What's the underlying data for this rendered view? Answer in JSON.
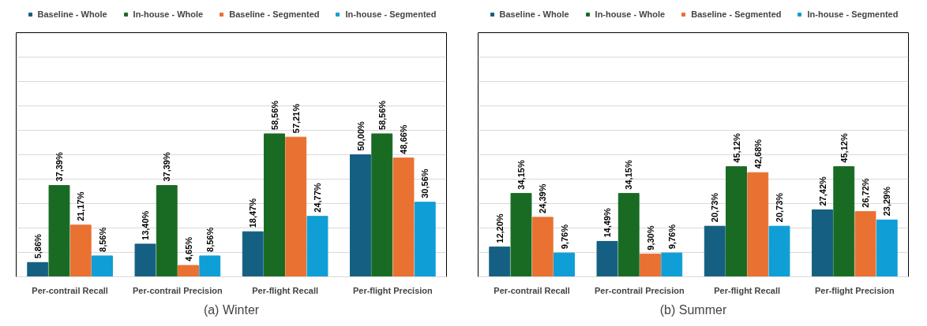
{
  "chart_data": [
    {
      "type": "bar",
      "title": "(a) Winter",
      "categories": [
        "Per-contrail Recall",
        "Per-contrail Precision",
        "Per-flight Recall",
        "Per-flight Precision"
      ],
      "ylim": [
        0,
        100
      ],
      "yticks": [
        {
          "value": 0,
          "label": null
        },
        {
          "value": 10,
          "label": null
        },
        {
          "value": 20,
          "label": null
        },
        {
          "value": 30,
          "label": null
        },
        {
          "value": 40,
          "label": null
        },
        {
          "value": 50,
          "label": null
        },
        {
          "value": 60,
          "label": null
        },
        {
          "value": 70,
          "label": null
        },
        {
          "value": 80,
          "label": null
        },
        {
          "value": 90,
          "label": null
        },
        {
          "value": 100,
          "label": null
        }
      ],
      "grid": "y",
      "legend": "top",
      "tick_labels": "x",
      "series": [
        {
          "name": "Baseline - Whole",
          "color": "#156082",
          "values": [
            5.86,
            13.4,
            18.47,
            50.0
          ],
          "value_labels": [
            "5,86%",
            "13,40%",
            "18,47%",
            "50,00%"
          ]
        },
        {
          "name": "In-house - Whole",
          "color": "#196b24",
          "values": [
            37.39,
            37.39,
            58.56,
            58.56
          ],
          "value_labels": [
            "37,39%",
            "37,39%",
            "58,56%",
            "58,56%"
          ]
        },
        {
          "name": "Baseline - Segmented",
          "color": "#e97132",
          "values": [
            21.17,
            4.65,
            57.21,
            48.66
          ],
          "value_labels": [
            "21,17%",
            "4,65%",
            "57,21%",
            "48,66%"
          ]
        },
        {
          "name": "In-house - Segmented",
          "color": "#0f9ed5",
          "values": [
            8.56,
            8.56,
            24.77,
            30.56
          ],
          "value_labels": [
            "8,56%",
            "8,56%",
            "24,77%",
            "30,56%"
          ]
        }
      ]
    },
    {
      "type": "bar",
      "title": "(b) Summer",
      "categories": [
        "Per-contrail Recall",
        "Per-contrail Precision",
        "Per-flight Recall",
        "Per-flight Precision"
      ],
      "ylim": [
        0,
        100
      ],
      "yticks": [
        {
          "value": 0,
          "label": null
        },
        {
          "value": 10,
          "label": null
        },
        {
          "value": 20,
          "label": null
        },
        {
          "value": 30,
          "label": null
        },
        {
          "value": 40,
          "label": null
        },
        {
          "value": 50,
          "label": null
        },
        {
          "value": 60,
          "label": null
        },
        {
          "value": 70,
          "label": null
        },
        {
          "value": 80,
          "label": null
        },
        {
          "value": 90,
          "label": null
        },
        {
          "value": 100,
          "label": null
        }
      ],
      "grid": "y",
      "legend": "top",
      "tick_labels": "x",
      "series": [
        {
          "name": "Baseline - Whole",
          "color": "#156082",
          "values": [
            12.2,
            14.49,
            20.73,
            27.42
          ],
          "value_labels": [
            "12,20%",
            "14,49%",
            "20,73%",
            "27,42%"
          ]
        },
        {
          "name": "In-house - Whole",
          "color": "#196b24",
          "values": [
            34.15,
            34.15,
            45.12,
            45.12
          ],
          "value_labels": [
            "34,15%",
            "34,15%",
            "45,12%",
            "45,12%"
          ]
        },
        {
          "name": "Baseline - Segmented",
          "color": "#e97132",
          "values": [
            24.39,
            9.3,
            42.68,
            26.72
          ],
          "value_labels": [
            "24,39%",
            "9,30%",
            "42,68%",
            "26,72%"
          ]
        },
        {
          "name": "In-house - Segmented",
          "color": "#0f9ed5",
          "values": [
            9.76,
            9.76,
            20.73,
            23.29
          ],
          "value_labels": [
            "9,76%",
            "9,76%",
            "20,73%",
            "23,29%"
          ]
        }
      ]
    }
  ]
}
